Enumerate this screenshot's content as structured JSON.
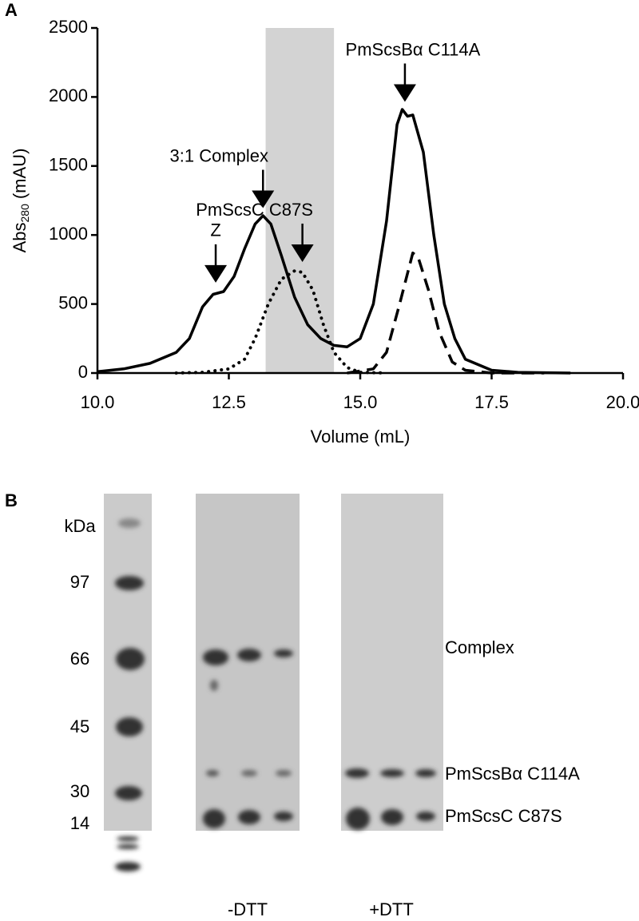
{
  "panel_a": {
    "label": "A"
  },
  "chart_data": {
    "type": "line",
    "xlabel": "Volume (mL)",
    "ylabel_parts": [
      "Abs",
      "280",
      "(mAU)"
    ],
    "xlim": [
      10,
      20
    ],
    "xticks": [
      {
        "value": 10,
        "label": "10.0"
      },
      {
        "value": 12.5,
        "label": "12.5"
      },
      {
        "value": 15,
        "label": "15.0"
      },
      {
        "value": 17.5,
        "label": "17.5"
      },
      {
        "value": 20,
        "label": "20.0"
      }
    ],
    "ylim": [
      0,
      2500
    ],
    "yticks": [
      0,
      500,
      1000,
      1500,
      2000,
      2500
    ],
    "shaded_region": [
      13.2,
      14.5
    ],
    "shade_color": "#d3d3d3",
    "series": [
      {
        "color": "#000000",
        "dash": "solid",
        "x": [
          10.0,
          10.5,
          11.0,
          11.5,
          11.75,
          12.0,
          12.2,
          12.4,
          12.6,
          12.8,
          13.0,
          13.15,
          13.3,
          13.5,
          13.75,
          14.0,
          14.25,
          14.5,
          14.75,
          15.0,
          15.25,
          15.5,
          15.7,
          15.8,
          15.9,
          16.0,
          16.2,
          16.4,
          16.6,
          16.8,
          17.0,
          17.5,
          18.0,
          19.0
        ],
        "values": [
          10,
          30,
          70,
          150,
          250,
          480,
          570,
          590,
          700,
          900,
          1080,
          1140,
          1080,
          850,
          550,
          350,
          250,
          200,
          190,
          250,
          500,
          1100,
          1800,
          1910,
          1860,
          1870,
          1600,
          1000,
          500,
          250,
          100,
          20,
          5,
          0
        ]
      },
      {
        "color": "#000000",
        "dash": "dotted",
        "x": [
          11.5,
          12.0,
          12.5,
          12.8,
          13.0,
          13.25,
          13.5,
          13.75,
          13.9,
          14.1,
          14.3,
          14.5,
          14.75,
          15.0,
          15.5
        ],
        "values": [
          0,
          5,
          30,
          100,
          250,
          500,
          680,
          740,
          730,
          600,
          350,
          150,
          40,
          5,
          0
        ]
      },
      {
        "color": "#000000",
        "dash": "dashed",
        "x": [
          14.75,
          15.25,
          15.5,
          15.75,
          16.0,
          16.1,
          16.3,
          16.5,
          16.75,
          17.0,
          17.5,
          18.5
        ],
        "values": [
          0,
          30,
          150,
          500,
          870,
          840,
          600,
          300,
          80,
          20,
          0,
          0
        ]
      }
    ],
    "annotations": [
      {
        "text": "Z",
        "x": 12.25,
        "y": 620
      },
      {
        "text": "3:1 Complex",
        "x": 13.15,
        "y": 1160
      },
      {
        "text": "PmScsC C87S",
        "x": 13.9,
        "y": 770
      },
      {
        "text": "PmScsBα C114A",
        "x": 15.85,
        "y": 1930
      }
    ]
  },
  "panel_b": {
    "label": "B",
    "marker_unit": "kDa",
    "markers": [
      "97",
      "66",
      "45",
      "30",
      "14"
    ],
    "band_labels": [
      "Complex",
      "PmScsBα C114A",
      "PmScsC C87S"
    ],
    "lane_groups": [
      "-DTT",
      "+DTT"
    ]
  }
}
